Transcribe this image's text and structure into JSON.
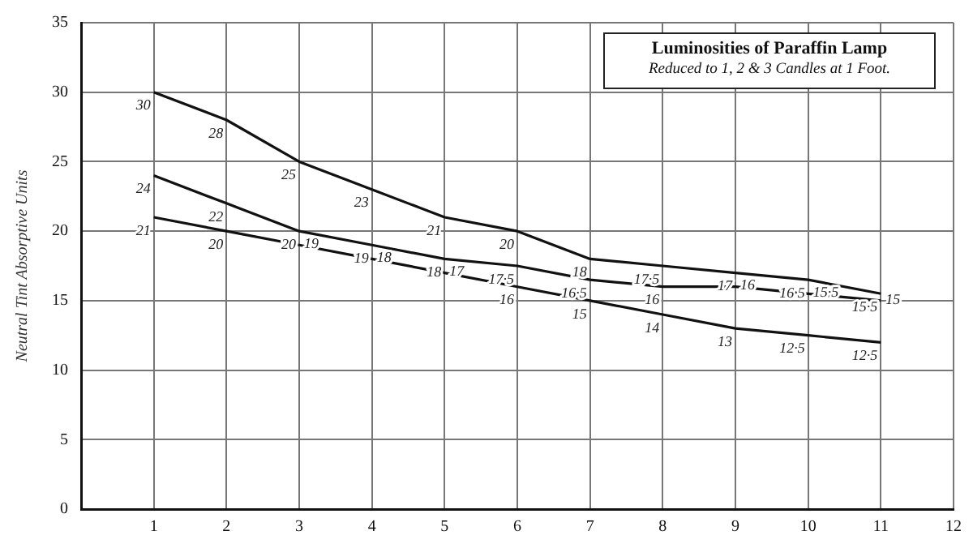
{
  "chart_data": {
    "type": "line",
    "title": "Luminosities of Paraffin Lamp",
    "subtitle": "Reduced to 1, 2 & 3 Candles at 1 Foot.",
    "ylabel": "Neutral Tint Absorptive Units",
    "x": [
      1,
      2,
      3,
      4,
      5,
      6,
      7,
      8,
      9,
      10,
      11
    ],
    "series": [
      {
        "color": "#111111",
        "values": [
          30,
          28,
          25,
          23,
          21,
          20,
          18,
          17.5,
          17,
          16.5,
          15.5
        ],
        "value_labels": [
          "30",
          "28",
          "25",
          "23",
          "21",
          "20",
          "18",
          "17·5",
          "17",
          "16·5",
          "15·5"
        ]
      },
      {
        "color": "#111111",
        "values": [
          24,
          22,
          20,
          19,
          18,
          17.5,
          16.5,
          16,
          16,
          15.5,
          15
        ],
        "value_labels": [
          "24",
          "22",
          "20",
          "19",
          "18",
          "17·5",
          "16·5",
          "16",
          "16",
          "15·5",
          "15"
        ]
      },
      {
        "color": "#111111",
        "values": [
          21,
          20,
          19,
          18,
          17,
          16,
          15,
          14,
          13,
          12.5,
          12
        ],
        "value_labels": [
          "21",
          "20",
          "19",
          "18",
          "17",
          "16",
          "15",
          "14",
          "13",
          "12·5",
          "12·5"
        ]
      }
    ],
    "xlim": [
      0,
      12
    ],
    "xticks": [
      1,
      2,
      3,
      4,
      5,
      6,
      7,
      8,
      9,
      10,
      11,
      12
    ],
    "ylim": [
      0,
      35
    ],
    "yticks": [
      0,
      5,
      10,
      15,
      20,
      25,
      30,
      35
    ],
    "grid": true,
    "legend": false,
    "marker": "none",
    "line_style": "solid"
  }
}
